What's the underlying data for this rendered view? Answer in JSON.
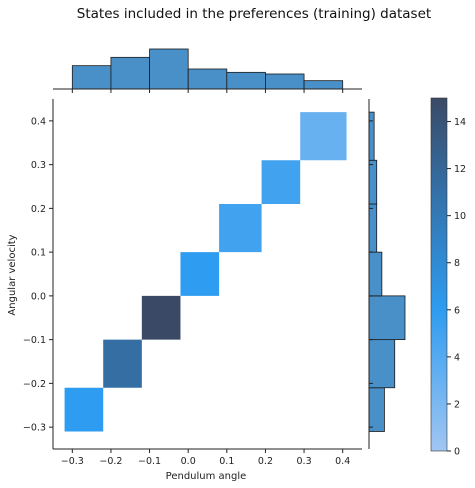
{
  "chart_data": {
    "type": "heatmap",
    "title": "States included in the preferences (training) dataset",
    "xlabel": "Pendulum angle",
    "ylabel": "Angular velocity",
    "xlim": [
      -0.35,
      0.45
    ],
    "ylim": [
      -0.35,
      0.45
    ],
    "x_ticks": [
      "−0.3",
      "−0.2",
      "−0.1",
      "0.0",
      "0.1",
      "0.2",
      "0.3",
      "0.4"
    ],
    "x_tick_values": [
      -0.3,
      -0.2,
      -0.1,
      0.0,
      0.1,
      0.2,
      0.3,
      0.4
    ],
    "y_ticks": [
      "−0.3",
      "−0.2",
      "−0.1",
      "0.0",
      "0.1",
      "0.2",
      "0.3",
      "0.4"
    ],
    "y_tick_values": [
      -0.3,
      -0.2,
      -0.1,
      0.0,
      0.1,
      0.2,
      0.3,
      0.4
    ],
    "cells": [
      {
        "x0": -0.32,
        "x1": -0.22,
        "y0": -0.31,
        "y1": -0.21,
        "count": 6
      },
      {
        "x0": -0.22,
        "x1": -0.12,
        "y0": -0.21,
        "y1": -0.1,
        "count": 11
      },
      {
        "x0": -0.12,
        "x1": -0.02,
        "y0": -0.1,
        "y1": 0.0,
        "count": 15
      },
      {
        "x0": -0.02,
        "x1": 0.08,
        "y0": 0.0,
        "y1": 0.1,
        "count": 6
      },
      {
        "x0": 0.08,
        "x1": 0.19,
        "y0": 0.1,
        "y1": 0.21,
        "count": 5
      },
      {
        "x0": 0.19,
        "x1": 0.29,
        "y0": 0.21,
        "y1": 0.31,
        "count": 5
      },
      {
        "x0": 0.29,
        "x1": 0.41,
        "y0": 0.31,
        "y1": 0.42,
        "count": 3
      }
    ],
    "marginal_x": {
      "bins": [
        -0.3,
        -0.2,
        -0.1,
        0.0,
        0.1,
        0.2,
        0.3,
        0.4
      ],
      "counts": [
        14,
        19,
        24,
        12,
        10,
        9,
        5
      ]
    },
    "marginal_y": {
      "bins": [
        -0.31,
        -0.21,
        -0.1,
        0.0,
        0.1,
        0.21,
        0.31,
        0.42
      ],
      "counts": [
        6,
        10,
        14,
        5,
        3,
        3,
        2
      ]
    },
    "colorbar": {
      "min": 0,
      "max": 15,
      "ticks": [
        "0",
        "2",
        "4",
        "6",
        "8",
        "10",
        "12",
        "14"
      ],
      "tick_values": [
        0,
        2,
        4,
        6,
        8,
        10,
        12,
        14
      ]
    },
    "colors": {
      "low": "#a1c6f2",
      "mid": "#2e9cf0",
      "high": "#3a4a66",
      "marginal_fill": "#4a90c8",
      "edge": "#1a1a1a"
    }
  }
}
